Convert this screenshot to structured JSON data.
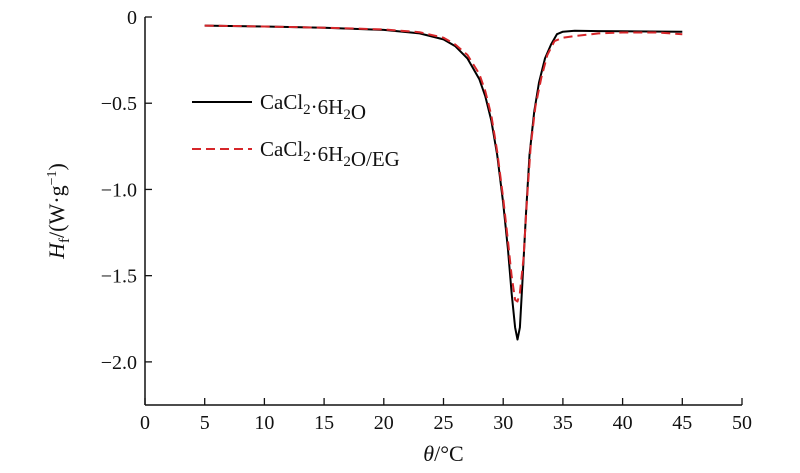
{
  "chart_data": {
    "type": "line",
    "xlabel": "θ/°C",
    "ylabel": "Hf/(W·g−1)",
    "xlim": [
      0,
      50
    ],
    "ylim": [
      -2.25,
      0
    ],
    "xticks": [
      0,
      5,
      10,
      15,
      20,
      25,
      30,
      35,
      40,
      45,
      50
    ],
    "yticks": [
      0,
      -0.5,
      -1.0,
      -1.5,
      -2.0
    ],
    "ytick_labels": [
      "0",
      "−0.5",
      "−1.0",
      "−1.5",
      "−2.0"
    ],
    "grid": false,
    "legend_position": "upper-left",
    "series": [
      {
        "name": "CaCl2·6H2O",
        "color": "#000000",
        "style": "solid",
        "points": [
          [
            5,
            -0.05
          ],
          [
            10,
            -0.055
          ],
          [
            15,
            -0.062
          ],
          [
            20,
            -0.075
          ],
          [
            23,
            -0.095
          ],
          [
            25,
            -0.13
          ],
          [
            26,
            -0.17
          ],
          [
            27,
            -0.24
          ],
          [
            28,
            -0.36
          ],
          [
            28.5,
            -0.46
          ],
          [
            29,
            -0.6
          ],
          [
            29.5,
            -0.8
          ],
          [
            30,
            -1.08
          ],
          [
            30.4,
            -1.35
          ],
          [
            30.7,
            -1.6
          ],
          [
            31,
            -1.8
          ],
          [
            31.2,
            -1.87
          ],
          [
            31.4,
            -1.8
          ],
          [
            31.6,
            -1.55
          ],
          [
            31.9,
            -1.15
          ],
          [
            32.2,
            -0.8
          ],
          [
            32.6,
            -0.55
          ],
          [
            33,
            -0.38
          ],
          [
            33.5,
            -0.24
          ],
          [
            34,
            -0.16
          ],
          [
            34.5,
            -0.1
          ],
          [
            35,
            -0.085
          ],
          [
            36,
            -0.08
          ],
          [
            38,
            -0.082
          ],
          [
            40,
            -0.083
          ],
          [
            45,
            -0.085
          ]
        ]
      },
      {
        "name": "CaCl2·6H2O/EG",
        "color": "#d6262a",
        "style": "dashed",
        "points": [
          [
            5,
            -0.05
          ],
          [
            10,
            -0.055
          ],
          [
            15,
            -0.062
          ],
          [
            20,
            -0.072
          ],
          [
            23,
            -0.088
          ],
          [
            25,
            -0.12
          ],
          [
            26,
            -0.16
          ],
          [
            27,
            -0.22
          ],
          [
            28,
            -0.33
          ],
          [
            28.5,
            -0.43
          ],
          [
            29,
            -0.57
          ],
          [
            29.5,
            -0.78
          ],
          [
            30,
            -1.05
          ],
          [
            30.4,
            -1.3
          ],
          [
            30.7,
            -1.5
          ],
          [
            31,
            -1.64
          ],
          [
            31.2,
            -1.65
          ],
          [
            31.4,
            -1.6
          ],
          [
            31.7,
            -1.4
          ],
          [
            32,
            -1.05
          ],
          [
            32.3,
            -0.75
          ],
          [
            32.7,
            -0.52
          ],
          [
            33.2,
            -0.35
          ],
          [
            33.7,
            -0.22
          ],
          [
            34.3,
            -0.14
          ],
          [
            35,
            -0.12
          ],
          [
            36,
            -0.11
          ],
          [
            38,
            -0.095
          ],
          [
            40,
            -0.09
          ],
          [
            43,
            -0.09
          ],
          [
            45,
            -0.1
          ]
        ]
      }
    ]
  }
}
